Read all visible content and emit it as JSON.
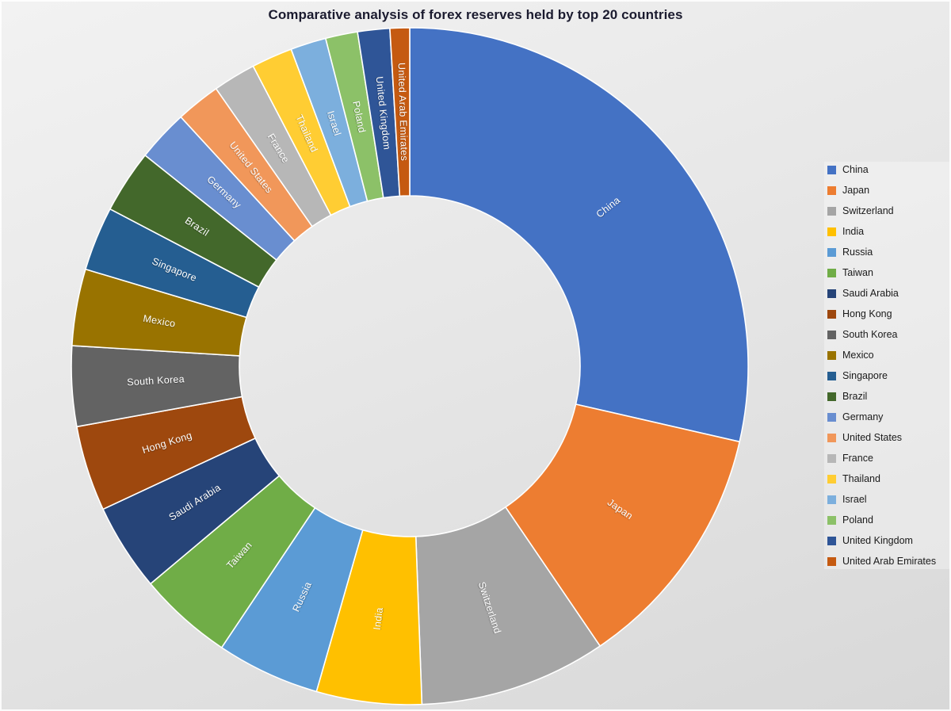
{
  "chart_data": {
    "type": "pie",
    "subtype": "doughnut",
    "title": "Comparative analysis of forex reserves held by top 20 countries",
    "legend_position": "right",
    "hole_ratio": 0.503,
    "start_angle_deg": 0,
    "direction": "clockwise",
    "grid": false,
    "value_note": "No numeric labels are visible in the chart; values are estimated from slice angles, approx. US$ billions.",
    "series": [
      {
        "label": "China",
        "value": 3360,
        "color": "#4472C4"
      },
      {
        "label": "Japan",
        "value": 1400,
        "color": "#ED7D31"
      },
      {
        "label": "Switzerland",
        "value": 1050,
        "color": "#A5A5A5"
      },
      {
        "label": "India",
        "value": 590,
        "color": "#FFC000"
      },
      {
        "label": "Russia",
        "value": 580,
        "color": "#5B9BD5"
      },
      {
        "label": "Taiwan",
        "value": 530,
        "color": "#70AD47"
      },
      {
        "label": "Saudi Arabia",
        "value": 490,
        "color": "#264478"
      },
      {
        "label": "Hong Kong",
        "value": 480,
        "color": "#9E480E"
      },
      {
        "label": "South Korea",
        "value": 450,
        "color": "#636363"
      },
      {
        "label": "Mexico",
        "value": 430,
        "color": "#997300"
      },
      {
        "label": "Singapore",
        "value": 360,
        "color": "#255E91"
      },
      {
        "label": "Brazil",
        "value": 355,
        "color": "#43682B"
      },
      {
        "label": "Germany",
        "value": 290,
        "color": "#698ED0"
      },
      {
        "label": "United States",
        "value": 250,
        "color": "#F1975A"
      },
      {
        "label": "France",
        "value": 240,
        "color": "#B7B7B7"
      },
      {
        "label": "Thailand",
        "value": 230,
        "color": "#FFCD33"
      },
      {
        "label": "Israel",
        "value": 200,
        "color": "#7CAFDD"
      },
      {
        "label": "Poland",
        "value": 180,
        "color": "#8CC168"
      },
      {
        "label": "United Kingdom",
        "value": 180,
        "color": "#2F5597"
      },
      {
        "label": "United Arab Emirates",
        "value": 110,
        "color": "#C55A11"
      }
    ],
    "colors": {
      "slice_border": "#ffffff",
      "slice_label_text": "#ffffff",
      "title_text": "#1b1b2f",
      "legend_text": "#1a1a1a",
      "background": "#e7e7e7"
    }
  }
}
